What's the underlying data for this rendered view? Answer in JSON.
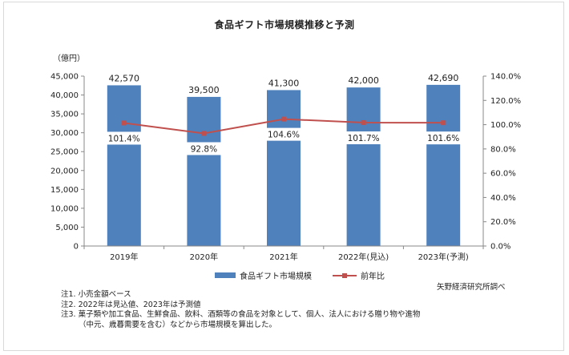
{
  "title": "食品ギフト市場規模推移と予測",
  "y_unit": "（億円）",
  "source": "矢野経済研究所調べ",
  "notes": [
    "注1. 小売金額ベース",
    "注2. 2022年は見込値、2023年は予測値",
    "注3. 菓子類や加工食品、生鮮食品、飲料、酒類等の食品を対象として、個人、法人における贈り物や進物",
    "（中元、歳暮需要を含む）などから市場規模を算出した。"
  ],
  "colors": {
    "bar": "#4f81bd",
    "line": "#c0504d"
  },
  "chart_data": {
    "type": "bar",
    "categories": [
      "2019年",
      "2020年",
      "2021年",
      "2022年(見込)",
      "2023年(予測)"
    ],
    "series": [
      {
        "name": "食品ギフト市場規模",
        "type": "bar",
        "axis": "left",
        "values": [
          42570,
          39500,
          41300,
          42000,
          42690
        ],
        "value_labels": [
          "42,570",
          "39,500",
          "41,300",
          "42,000",
          "42,690"
        ]
      },
      {
        "name": "前年比",
        "type": "line",
        "axis": "right",
        "values": [
          101.4,
          92.8,
          104.6,
          101.7,
          101.6
        ],
        "value_labels": [
          "101.4%",
          "92.8%",
          "104.6%",
          "101.7%",
          "101.6%"
        ]
      }
    ],
    "y_left": {
      "ylim": [
        0,
        45000
      ],
      "ticks": [
        "0",
        "5,000",
        "10,000",
        "15,000",
        "20,000",
        "25,000",
        "30,000",
        "35,000",
        "40,000",
        "45,000"
      ]
    },
    "y_right": {
      "ylim": [
        0,
        140
      ],
      "ticks": [
        "0.0%",
        "20.0%",
        "40.0%",
        "60.0%",
        "80.0%",
        "100.0%",
        "120.0%",
        "140.0%"
      ]
    },
    "legend_position": "bottom",
    "grid": false
  }
}
